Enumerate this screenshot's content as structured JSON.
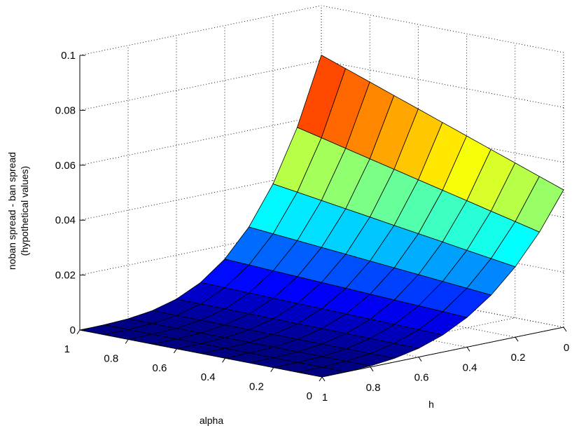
{
  "chart_data": {
    "type": "surface",
    "title": "",
    "xlabel": "alpha",
    "ylabel": "h",
    "zlabel_lines": [
      "noban spread - ban spread",
      "(hypothetical values)"
    ],
    "xlim": [
      0,
      1
    ],
    "ylim": [
      0,
      1
    ],
    "zlim": [
      0,
      0.1
    ],
    "x_ticks": [
      "0",
      "0.2",
      "0.4",
      "0.6",
      "0.8",
      "1"
    ],
    "y_ticks": [
      "0",
      "0.2",
      "0.4",
      "0.6",
      "0.8",
      "1"
    ],
    "z_ticks": [
      "0",
      "0.02",
      "0.04",
      "0.06",
      "0.08",
      "0.1"
    ],
    "grid": true,
    "colormap": "jet",
    "grid_resolution": 10,
    "corner_values": {
      "alpha0_h0": 0.05,
      "alpha0_h1": 0.0,
      "alpha1_h0": 0.082,
      "alpha1_h1": 0.0
    },
    "description_formula": "z = 0.05*(1-h)^3 + 0.032*alpha*(1-h)^4"
  }
}
